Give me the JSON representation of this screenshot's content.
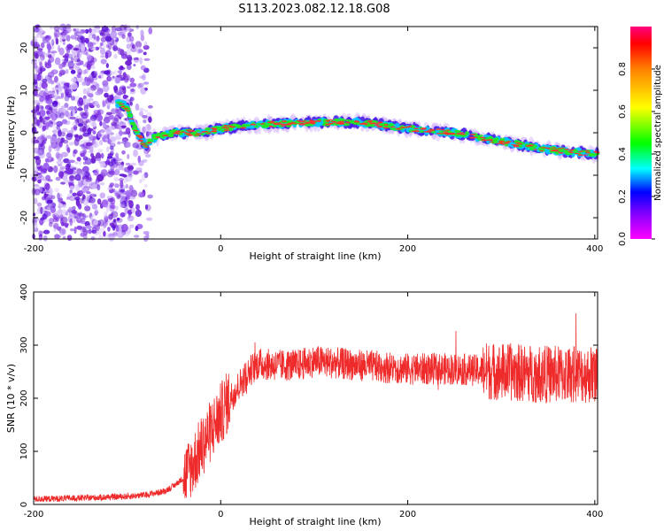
{
  "figure_title": "S113.2023.082.12.18.G08",
  "colors": {
    "signal": "#ee2a2a",
    "noise": "#7a2be0",
    "axis": "#000000"
  },
  "chart_data": [
    {
      "type": "heatmap",
      "xlabel": "Height of straight line (km)",
      "ylabel": "Frequency (Hz)",
      "xlim": [
        -200,
        403
      ],
      "ylim": [
        -25,
        25
      ],
      "xticks": [
        -200,
        0,
        200,
        400
      ],
      "yticks": [
        20,
        10,
        0,
        -10,
        -20
      ],
      "colorbar": {
        "label": "Normalized spectral amplitude",
        "range": [
          0,
          1
        ],
        "ticks": [
          "0.0",
          "0.2",
          "0.4",
          "0.6",
          "0.8"
        ],
        "colormap": "hsv"
      },
      "ridge": {
        "name": "Doppler frequency trace",
        "x": [
          -110,
          -100,
          -90,
          -80,
          -70,
          -50,
          -20,
          0,
          50,
          100,
          150,
          200,
          250,
          300,
          350,
          400
        ],
        "y": [
          7,
          6,
          0,
          -3,
          -1,
          0,
          0,
          1,
          2,
          2.5,
          2.5,
          1,
          0,
          -2,
          -4,
          -5
        ]
      },
      "noise_region": {
        "x": [
          -200,
          -95
        ],
        "description_hidden": true
      }
    },
    {
      "type": "line",
      "xlabel": "Height of straight line (km)",
      "ylabel": "SNR (10 * v/v)",
      "xlim": [
        -200,
        403
      ],
      "ylim": [
        0,
        400
      ],
      "xticks": [
        -200,
        0,
        200,
        400
      ],
      "yticks": [
        400,
        300,
        200,
        100,
        0
      ],
      "series": [
        {
          "x": [
            -200,
            -150,
            -100,
            -80,
            -60,
            -50,
            -40,
            -30,
            -20,
            -10,
            0,
            10,
            20,
            30,
            40,
            60,
            80,
            100,
            150,
            200,
            250,
            300,
            350,
            400
          ],
          "y": [
            10,
            12,
            15,
            18,
            25,
            35,
            50,
            75,
            110,
            140,
            170,
            200,
            225,
            250,
            265,
            262,
            262,
            270,
            262,
            255,
            255,
            250,
            245,
            245
          ]
        }
      ]
    }
  ]
}
